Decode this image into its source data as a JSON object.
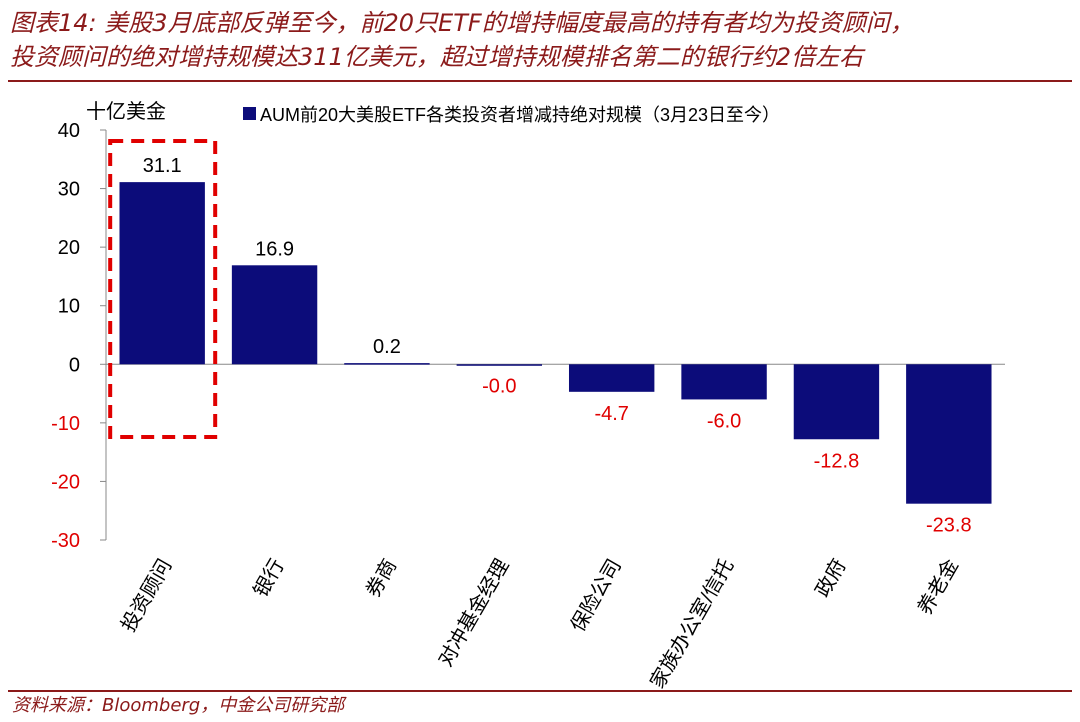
{
  "title_lines": [
    "图表14: 美股3月底部反弹至今，前20只ETF的增持幅度最高的持有者均为投资顾问，",
    "投资顾问的绝对增持规模达311亿美元，超过增持规模排名第二的银行约2倍左右"
  ],
  "source": "资料来源：Bloomberg，中金公司研究部",
  "colors": {
    "bar": "#0c0c7a",
    "positive_label": "#000000",
    "negative_label": "#e00000",
    "negative_tick": "#e00000",
    "highlight_box": "#e00000",
    "title": "#8b1a1a"
  },
  "chart_data": {
    "type": "bar",
    "unit_label": "十亿美金",
    "legend": "AUM前20大美股ETF各类投资者增减持绝对规模（3月23日至今）",
    "legend_position": "top",
    "categories": [
      "投资顾问",
      "银行",
      "券商",
      "对冲基金经理",
      "保险公司",
      "家族办公室/信托",
      "政府",
      "养老金"
    ],
    "values": [
      31.1,
      16.9,
      0.2,
      -0.0,
      -4.7,
      -6.0,
      -12.8,
      -23.8
    ],
    "value_labels": [
      "31.1",
      "16.9",
      "0.2",
      "-0.0",
      "-4.7",
      "-6.0",
      "-12.8",
      "-23.8"
    ],
    "ylim": [
      -30,
      40
    ],
    "yticks": [
      40,
      30,
      20,
      10,
      0,
      -10,
      -20,
      -30
    ],
    "ytick_labels": [
      "40",
      "30",
      "20",
      "10",
      "0",
      "-10",
      "-20",
      "-30"
    ],
    "grid": false,
    "highlight_category": "投资顾问"
  }
}
